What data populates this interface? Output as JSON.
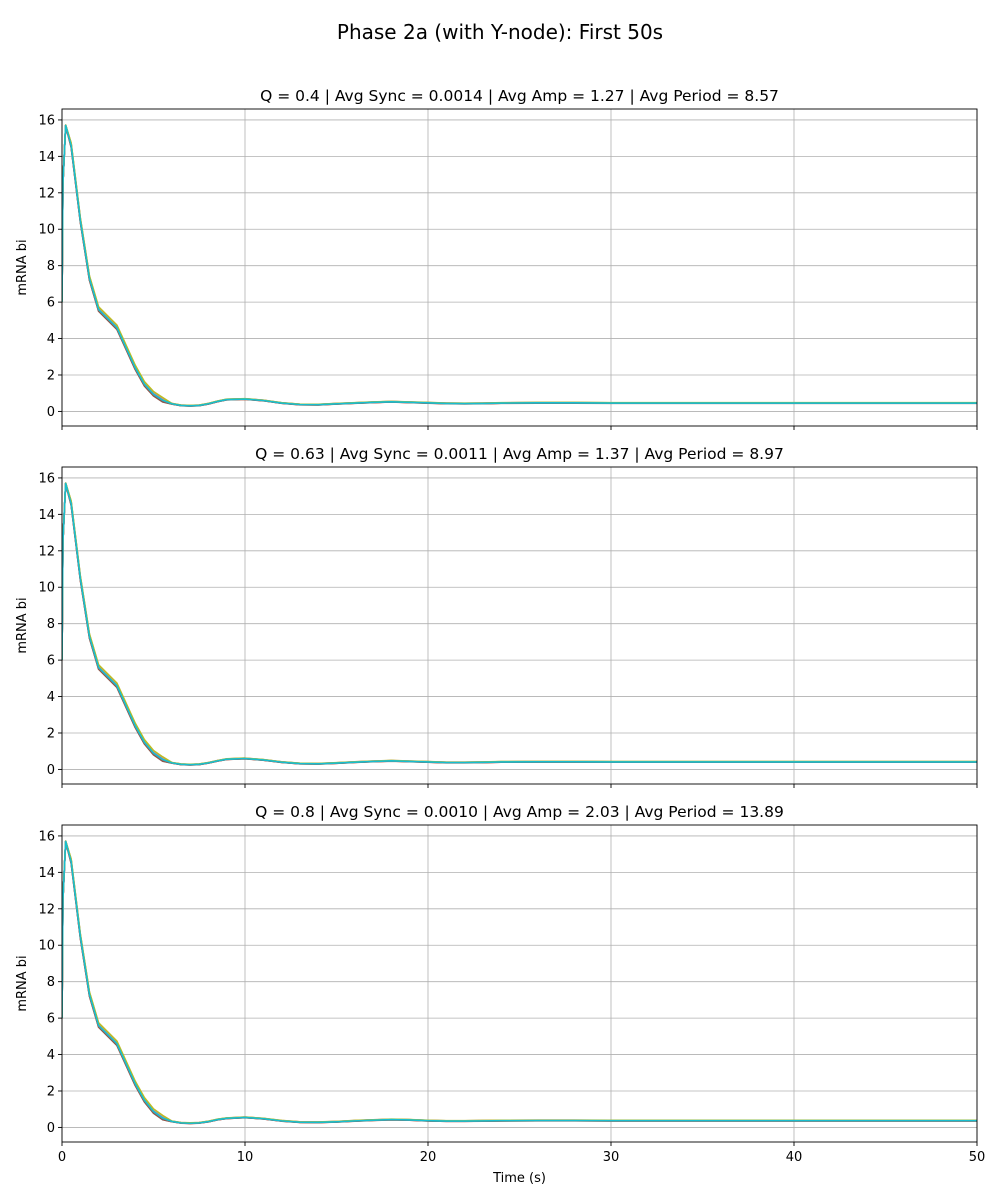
{
  "figure": {
    "suptitle": "Phase 2a (with Y-node): First 50s"
  },
  "chart_data": [
    {
      "type": "line",
      "title": "Q = 0.4 | Avg Sync = 0.0014 | Avg Amp = 1.27 | Avg Period = 8.57",
      "xlabel": "",
      "ylabel": "mRNA bi",
      "xlim": [
        0,
        50
      ],
      "ylim": [
        -0.8,
        16.6
      ],
      "xticks": [
        0,
        10,
        20,
        30,
        40,
        50
      ],
      "yticks": [
        0,
        2,
        4,
        6,
        8,
        10,
        12,
        14,
        16
      ],
      "xtick_labels_visible": false,
      "grid": true,
      "series_colors": [
        "#1f77b4",
        "#ff7f0e",
        "#2ca02c",
        "#d62728",
        "#9467bd",
        "#8c564b",
        "#e377c2",
        "#7f7f7f",
        "#bcbd22",
        "#17becf"
      ],
      "profile": {
        "x": [
          0,
          0.05,
          0.2,
          0.5,
          1,
          1.5,
          2,
          2.5,
          3,
          3.5,
          4,
          4.5,
          5,
          5.5,
          6,
          6.5,
          7,
          7.5,
          8,
          8.5,
          9,
          10,
          11,
          12,
          13,
          14,
          15,
          16,
          17,
          18,
          19,
          20,
          21,
          22,
          23,
          24,
          26,
          28,
          30,
          35,
          40,
          45,
          50
        ],
        "y": [
          6,
          12.5,
          15.7,
          14.6,
          10.5,
          7.3,
          5.6,
          5.1,
          4.6,
          3.5,
          2.4,
          1.5,
          0.95,
          0.62,
          0.42,
          0.33,
          0.31,
          0.33,
          0.42,
          0.55,
          0.65,
          0.68,
          0.6,
          0.46,
          0.38,
          0.37,
          0.42,
          0.46,
          0.5,
          0.53,
          0.5,
          0.47,
          0.44,
          0.43,
          0.44,
          0.46,
          0.47,
          0.47,
          0.46,
          0.46,
          0.46,
          0.46,
          0.46
        ]
      }
    },
    {
      "type": "line",
      "title": "Q = 0.63 | Avg Sync = 0.0011 | Avg Amp = 1.37 | Avg Period = 8.97",
      "xlabel": "",
      "ylabel": "mRNA bi",
      "xlim": [
        0,
        50
      ],
      "ylim": [
        -0.8,
        16.6
      ],
      "xticks": [
        0,
        10,
        20,
        30,
        40,
        50
      ],
      "yticks": [
        0,
        2,
        4,
        6,
        8,
        10,
        12,
        14,
        16
      ],
      "xtick_labels_visible": false,
      "grid": true,
      "series_colors": [
        "#1f77b4",
        "#ff7f0e",
        "#2ca02c",
        "#d62728",
        "#9467bd",
        "#8c564b",
        "#e377c2",
        "#7f7f7f",
        "#bcbd22",
        "#17becf"
      ],
      "profile": {
        "x": [
          0,
          0.05,
          0.2,
          0.5,
          1,
          1.5,
          2,
          2.5,
          3,
          3.5,
          4,
          4.5,
          5,
          5.5,
          6,
          6.5,
          7,
          7.5,
          8,
          8.5,
          9,
          10,
          11,
          12,
          13,
          14,
          15,
          16,
          17,
          18,
          19,
          20,
          21,
          22,
          23,
          24,
          26,
          28,
          30,
          35,
          40,
          45,
          50
        ],
        "y": [
          6,
          12.5,
          15.7,
          14.6,
          10.5,
          7.3,
          5.6,
          5.1,
          4.6,
          3.5,
          2.4,
          1.5,
          0.9,
          0.55,
          0.36,
          0.28,
          0.26,
          0.28,
          0.36,
          0.47,
          0.56,
          0.6,
          0.52,
          0.4,
          0.32,
          0.31,
          0.35,
          0.4,
          0.44,
          0.47,
          0.44,
          0.41,
          0.38,
          0.38,
          0.39,
          0.41,
          0.42,
          0.42,
          0.41,
          0.41,
          0.41,
          0.41,
          0.41
        ]
      }
    },
    {
      "type": "line",
      "title": "Q = 0.8 | Avg Sync = 0.0010 | Avg Amp = 2.03 | Avg Period = 13.89",
      "xlabel": "Time (s)",
      "ylabel": "mRNA bi",
      "xlim": [
        0,
        50
      ],
      "ylim": [
        -0.8,
        16.6
      ],
      "xticks": [
        0,
        10,
        20,
        30,
        40,
        50
      ],
      "yticks": [
        0,
        2,
        4,
        6,
        8,
        10,
        12,
        14,
        16
      ],
      "xtick_labels_visible": true,
      "grid": true,
      "series_colors": [
        "#1f77b4",
        "#ff7f0e",
        "#2ca02c",
        "#d62728",
        "#9467bd",
        "#8c564b",
        "#e377c2",
        "#7f7f7f",
        "#bcbd22",
        "#17becf"
      ],
      "profile": {
        "x": [
          0,
          0.05,
          0.2,
          0.5,
          1,
          1.5,
          2,
          2.5,
          3,
          3.5,
          4,
          4.5,
          5,
          5.5,
          6,
          6.5,
          7,
          7.5,
          8,
          8.5,
          9,
          10,
          11,
          12,
          13,
          14,
          15,
          16,
          17,
          18,
          19,
          20,
          21,
          22,
          23,
          24,
          26,
          28,
          30,
          35,
          40,
          45,
          50
        ],
        "y": [
          6,
          12.5,
          15.7,
          14.6,
          10.5,
          7.3,
          5.6,
          5.1,
          4.6,
          3.5,
          2.4,
          1.5,
          0.88,
          0.52,
          0.33,
          0.25,
          0.23,
          0.25,
          0.32,
          0.43,
          0.5,
          0.55,
          0.48,
          0.36,
          0.29,
          0.28,
          0.31,
          0.36,
          0.4,
          0.43,
          0.41,
          0.37,
          0.35,
          0.35,
          0.36,
          0.37,
          0.38,
          0.38,
          0.37,
          0.37,
          0.37,
          0.37,
          0.37
        ]
      }
    }
  ]
}
